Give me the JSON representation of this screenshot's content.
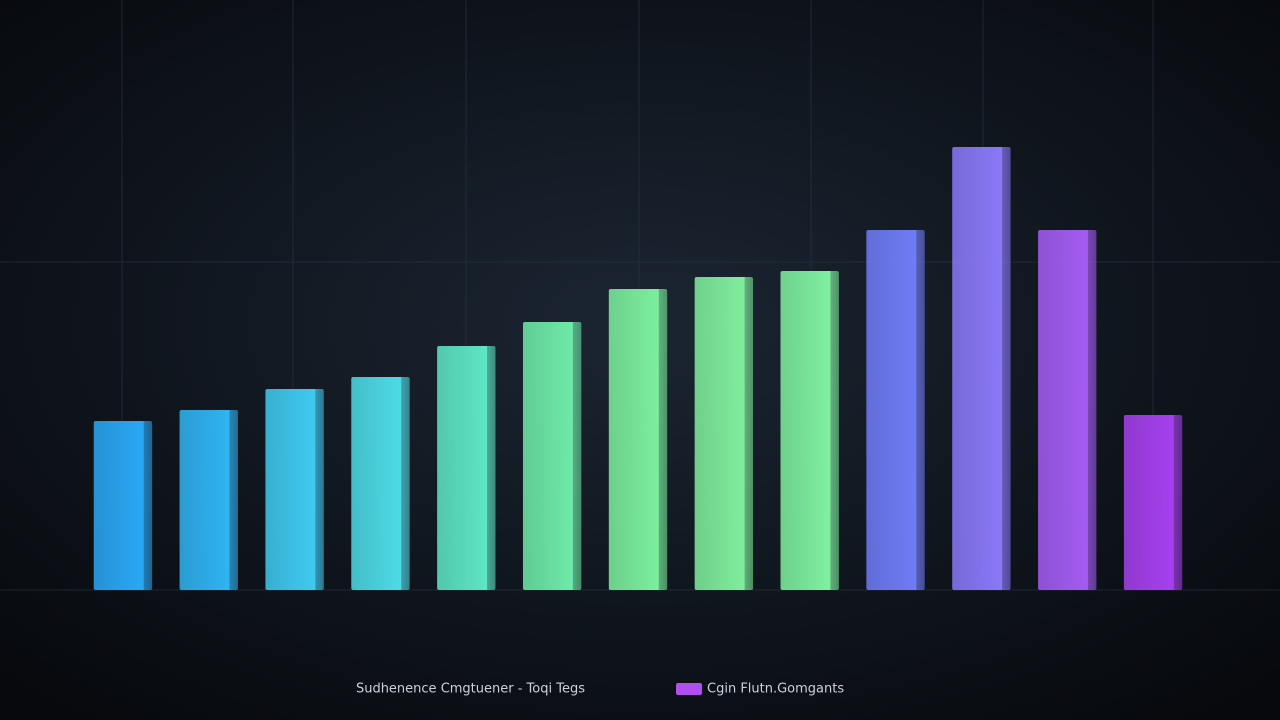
{
  "chart_data": {
    "type": "bar",
    "categories": [
      null,
      null,
      null,
      null,
      null,
      null,
      null,
      null,
      null,
      null,
      null,
      null,
      null
    ],
    "values": [
      169,
      180,
      201,
      213,
      244,
      268,
      301,
      313,
      319,
      360,
      443,
      360,
      175
    ],
    "colors": [
      "#2aa8f5",
      "#30b4f2",
      "#3fcaf0",
      "#4ddbe6",
      "#5ee6c4",
      "#6eeaa8",
      "#7cef9e",
      "#80ee9c",
      "#7ff0a0",
      "#6f7cf6",
      "#8a78f8",
      "#a45cf2",
      "#a640ee"
    ],
    "ylim": [
      0,
      480
    ],
    "grid": true,
    "caption": "Sudhenence Cmgtuener - Toqi Tegs",
    "legend": [
      {
        "name": "Cgin Flutn.Gomgants",
        "color": "#b04ef0"
      }
    ]
  }
}
